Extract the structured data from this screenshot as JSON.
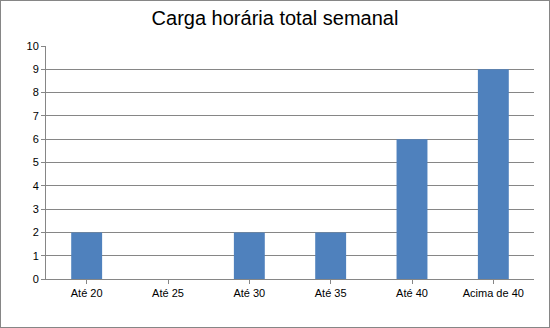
{
  "chart_data": {
    "type": "bar",
    "title": "Carga horária total semanal",
    "categories": [
      "Até 20",
      "Até 25",
      "Até 30",
      "Até 35",
      "Até 40",
      "Acima de 40"
    ],
    "values": [
      2,
      0,
      2,
      2,
      6,
      9
    ],
    "color": "#4f81bd",
    "ylim": [
      0,
      10
    ],
    "yticks": [
      0,
      1,
      2,
      3,
      4,
      5,
      6,
      7,
      8,
      9,
      10
    ],
    "grid": true
  }
}
